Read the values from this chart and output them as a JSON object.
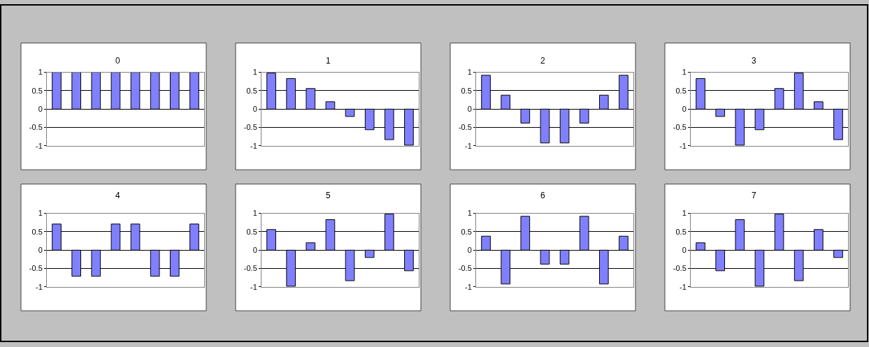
{
  "chart_data": [
    {
      "type": "bar",
      "title": "0",
      "categories": [
        null,
        null,
        null,
        null,
        null,
        null,
        null,
        null
      ],
      "values": [
        1,
        1,
        1,
        1,
        1,
        1,
        1,
        1
      ],
      "color": "#8080ff",
      "ylim": [
        -1,
        1
      ],
      "yticks": [
        -1,
        -0.5,
        0,
        0.5,
        1
      ],
      "grid": "y",
      "tick_labels": "y"
    },
    {
      "type": "bar",
      "title": "1",
      "categories": [
        null,
        null,
        null,
        null,
        null,
        null,
        null,
        null
      ],
      "values": [
        0.98,
        0.83,
        0.56,
        0.2,
        -0.2,
        -0.56,
        -0.83,
        -0.98
      ],
      "color": "#8080ff",
      "ylim": [
        -1,
        1
      ],
      "yticks": [
        -1,
        -0.5,
        0,
        0.5,
        1
      ],
      "grid": "y",
      "tick_labels": "y"
    },
    {
      "type": "bar",
      "title": "2",
      "categories": [
        null,
        null,
        null,
        null,
        null,
        null,
        null,
        null
      ],
      "values": [
        0.92,
        0.38,
        -0.38,
        -0.92,
        -0.92,
        -0.38,
        0.38,
        0.92
      ],
      "color": "#8080ff",
      "ylim": [
        -1,
        1
      ],
      "yticks": [
        -1,
        -0.5,
        0,
        0.5,
        1
      ],
      "grid": "y",
      "tick_labels": "y"
    },
    {
      "type": "bar",
      "title": "3",
      "categories": [
        null,
        null,
        null,
        null,
        null,
        null,
        null,
        null
      ],
      "values": [
        0.83,
        -0.2,
        -0.98,
        -0.56,
        0.56,
        0.98,
        0.2,
        -0.83
      ],
      "color": "#8080ff",
      "ylim": [
        -1,
        1
      ],
      "yticks": [
        -1,
        -0.5,
        0,
        0.5,
        1
      ],
      "grid": "y",
      "tick_labels": "y"
    },
    {
      "type": "bar",
      "title": "4",
      "categories": [
        null,
        null,
        null,
        null,
        null,
        null,
        null,
        null
      ],
      "values": [
        0.71,
        -0.71,
        -0.71,
        0.71,
        0.71,
        -0.71,
        -0.71,
        0.71
      ],
      "color": "#8080ff",
      "ylim": [
        -1,
        1
      ],
      "yticks": [
        -1,
        -0.5,
        0,
        0.5,
        1
      ],
      "grid": "y",
      "tick_labels": "y"
    },
    {
      "type": "bar",
      "title": "5",
      "categories": [
        null,
        null,
        null,
        null,
        null,
        null,
        null,
        null
      ],
      "values": [
        0.56,
        -0.98,
        0.2,
        0.83,
        -0.83,
        -0.2,
        0.98,
        -0.56
      ],
      "color": "#8080ff",
      "ylim": [
        -1,
        1
      ],
      "yticks": [
        -1,
        -0.5,
        0,
        0.5,
        1
      ],
      "grid": "y",
      "tick_labels": "y"
    },
    {
      "type": "bar",
      "title": "6",
      "categories": [
        null,
        null,
        null,
        null,
        null,
        null,
        null,
        null
      ],
      "values": [
        0.38,
        -0.92,
        0.92,
        -0.38,
        -0.38,
        0.92,
        -0.92,
        0.38
      ],
      "color": "#8080ff",
      "ylim": [
        -1,
        1
      ],
      "yticks": [
        -1,
        -0.5,
        0,
        0.5,
        1
      ],
      "grid": "y",
      "tick_labels": "y"
    },
    {
      "type": "bar",
      "title": "7",
      "categories": [
        null,
        null,
        null,
        null,
        null,
        null,
        null,
        null
      ],
      "values": [
        0.2,
        -0.56,
        0.83,
        -0.98,
        0.98,
        -0.83,
        0.56,
        -0.2
      ],
      "color": "#8080ff",
      "ylim": [
        -1,
        1
      ],
      "yticks": [
        -1,
        -0.5,
        0,
        0.5,
        1
      ],
      "grid": "y",
      "tick_labels": "y"
    }
  ]
}
